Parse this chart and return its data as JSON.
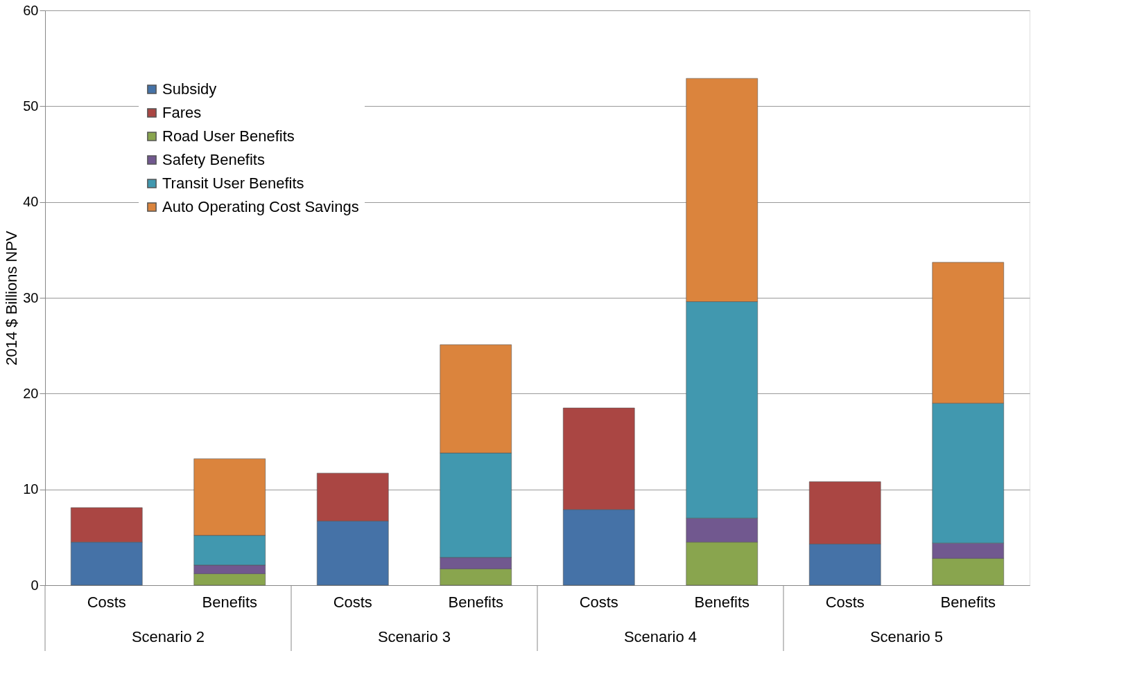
{
  "chart_data": {
    "type": "bar",
    "stacked": true,
    "ylabel": "2014 $ Billions NPV",
    "categories": [
      "Costs",
      "Benefits",
      "Costs",
      "Benefits",
      "Costs",
      "Benefits",
      "Costs",
      "Benefits"
    ],
    "annotations": [
      "Scenario 2",
      "Scenario 3",
      "Scenario 4",
      "Scenario 5"
    ],
    "series": [
      {
        "name": "Subsidy",
        "color": "#4572a7",
        "values": [
          4.5,
          null,
          6.7,
          null,
          7.9,
          null,
          4.3,
          null
        ]
      },
      {
        "name": "Fares",
        "color": "#aa4643",
        "values": [
          3.6,
          null,
          5.0,
          null,
          10.6,
          null,
          6.5,
          null
        ]
      },
      {
        "name": "Road User Benefits",
        "color": "#89a54e",
        "values": [
          null,
          1.2,
          null,
          1.7,
          null,
          4.5,
          null,
          2.8
        ]
      },
      {
        "name": "Safety Benefits",
        "color": "#71588f",
        "values": [
          null,
          0.9,
          null,
          1.2,
          null,
          2.5,
          null,
          1.6
        ]
      },
      {
        "name": "Transit User Benefits",
        "color": "#4198af",
        "values": [
          null,
          3.1,
          null,
          10.9,
          null,
          22.6,
          null,
          14.6
        ]
      },
      {
        "name": "Auto Operating Cost Savings",
        "color": "#db843d",
        "values": [
          null,
          8.0,
          null,
          11.3,
          null,
          23.3,
          null,
          14.7
        ]
      }
    ],
    "ylim": [
      0,
      60
    ],
    "yticks": [
      0,
      10,
      20,
      30,
      40,
      50,
      60
    ],
    "grid": "y",
    "legend": "top left"
  }
}
